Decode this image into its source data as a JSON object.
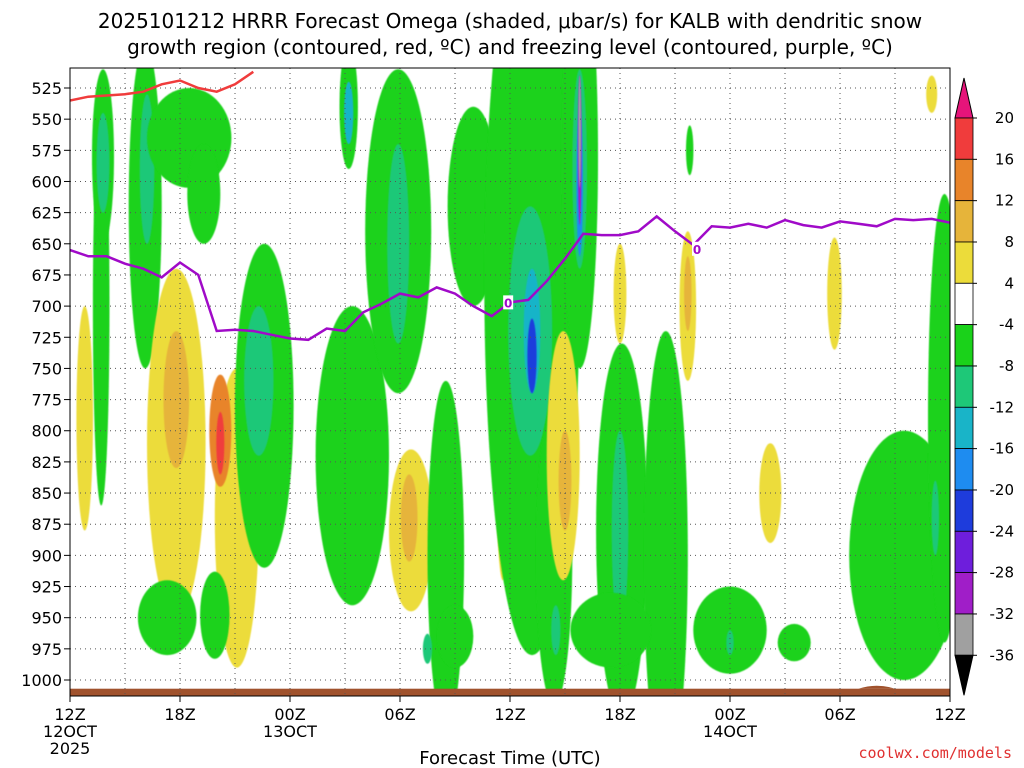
{
  "chart_data": {
    "type": "heatmap",
    "title_line1": "2025101212 HRRR Forecast Omega (shaded, μbar/s) for KALB with dendritic snow",
    "title_line2": "growth region (contoured, red, ºC) and freezing level (contoured, purple, ºC)",
    "xlabel": "Forecast Time (UTC)",
    "credit": "coolwx.com/models",
    "x_range": [
      0,
      48
    ],
    "y_range": [
      525,
      1000
    ],
    "x_ticks": [
      {
        "h": 0,
        "label": "12Z",
        "sub1": "12OCT",
        "sub2": "2025"
      },
      {
        "h": 6,
        "label": "18Z",
        "sub1": "",
        "sub2": ""
      },
      {
        "h": 12,
        "label": "00Z",
        "sub1": "13OCT",
        "sub2": ""
      },
      {
        "h": 18,
        "label": "06Z",
        "sub1": "",
        "sub2": ""
      },
      {
        "h": 24,
        "label": "12Z",
        "sub1": "",
        "sub2": ""
      },
      {
        "h": 30,
        "label": "18Z",
        "sub1": "",
        "sub2": ""
      },
      {
        "h": 36,
        "label": "00Z",
        "sub1": "14OCT",
        "sub2": ""
      },
      {
        "h": 42,
        "label": "06Z",
        "sub1": "",
        "sub2": ""
      },
      {
        "h": 48,
        "label": "12Z",
        "sub1": "",
        "sub2": ""
      }
    ],
    "y_ticks": [
      525,
      550,
      575,
      600,
      625,
      650,
      675,
      700,
      725,
      750,
      775,
      800,
      825,
      850,
      875,
      900,
      925,
      950,
      975,
      1000
    ],
    "colorbar": {
      "ticks": [
        20,
        16,
        12,
        8,
        4,
        -4,
        -8,
        -12,
        -16,
        -20,
        -24,
        -28,
        -32,
        -36
      ],
      "bands": [
        {
          "lo": 16,
          "hi": 20,
          "color": "#f03c3c"
        },
        {
          "lo": 12,
          "hi": 16,
          "color": "#e8842a"
        },
        {
          "lo": 8,
          "hi": 12,
          "color": "#e6b43a"
        },
        {
          "lo": 4,
          "hi": 8,
          "color": "#ecdc3a"
        },
        {
          "lo": -4,
          "hi": 4,
          "color": "#ffffff"
        },
        {
          "lo": -8,
          "hi": -4,
          "color": "#1ad21a"
        },
        {
          "lo": -12,
          "hi": -8,
          "color": "#1ec878"
        },
        {
          "lo": -16,
          "hi": -12,
          "color": "#19b4c8"
        },
        {
          "lo": -20,
          "hi": -16,
          "color": "#1e8cf0"
        },
        {
          "lo": -24,
          "hi": -20,
          "color": "#1e3cdc"
        },
        {
          "lo": -28,
          "hi": -24,
          "color": "#6e1edc"
        },
        {
          "lo": -32,
          "hi": -28,
          "color": "#a01ec8"
        },
        {
          "lo": -36,
          "hi": -32,
          "color": "#a0a0a0"
        }
      ],
      "top_color": "#e6147a",
      "bottom_color": "#000000"
    },
    "omega_regions": [
      {
        "value": -6,
        "h": 1.7,
        "p": 700,
        "dh": 0.45,
        "dp": 160
      },
      {
        "value": 6,
        "h": 0.8,
        "p": 790,
        "dh": 0.45,
        "dp": 90
      },
      {
        "value": -8,
        "h": 1.8,
        "p": 580,
        "dh": 0.6,
        "dp": 70
      },
      {
        "value": -12,
        "h": 1.8,
        "p": 585,
        "dh": 0.35,
        "dp": 40
      },
      {
        "value": -6,
        "h": 4.1,
        "p": 620,
        "dh": 0.9,
        "dp": 130
      },
      {
        "value": -10,
        "h": 4.2,
        "p": 590,
        "dh": 0.4,
        "dp": 60
      },
      {
        "value": -6,
        "h": 6.5,
        "p": 565,
        "dh": 2.3,
        "dp": 40
      },
      {
        "value": -6,
        "h": 7.3,
        "p": 610,
        "dh": 0.9,
        "dp": 40
      },
      {
        "value": 6,
        "h": 5.8,
        "p": 810,
        "dh": 1.6,
        "dp": 140
      },
      {
        "value": 10,
        "h": 5.8,
        "p": 775,
        "dh": 0.7,
        "dp": 55
      },
      {
        "value": 6,
        "h": 9.1,
        "p": 870,
        "dh": 1.2,
        "dp": 120
      },
      {
        "value": 12,
        "h": 8.2,
        "p": 800,
        "dh": 0.6,
        "dp": 45
      },
      {
        "value": 18,
        "h": 8.2,
        "p": 810,
        "dh": 0.22,
        "dp": 25
      },
      {
        "value": -6,
        "h": 5.3,
        "p": 950,
        "dh": 1.6,
        "dp": 30
      },
      {
        "value": -13,
        "h": 7.9,
        "p": 950,
        "dh": 0.35,
        "dp": 25
      },
      {
        "value": -6,
        "h": 7.9,
        "p": 948,
        "dh": 0.8,
        "dp": 35
      },
      {
        "value": -8,
        "h": 10.6,
        "p": 780,
        "dh": 1.6,
        "dp": 130
      },
      {
        "value": -10,
        "h": 10.3,
        "p": 760,
        "dh": 0.8,
        "dp": 60
      },
      {
        "value": -6,
        "h": 15.4,
        "p": 820,
        "dh": 2.0,
        "dp": 120
      },
      {
        "value": -6,
        "h": 17.9,
        "p": 640,
        "dh": 1.8,
        "dp": 130
      },
      {
        "value": -10,
        "h": 17.9,
        "p": 650,
        "dh": 0.6,
        "dp": 80
      },
      {
        "value": -8,
        "h": 15.2,
        "p": 540,
        "dh": 0.5,
        "dp": 50
      },
      {
        "value": -14,
        "h": 15.2,
        "p": 545,
        "dh": 0.25,
        "dp": 25
      },
      {
        "value": 6,
        "h": 18.6,
        "p": 880,
        "dh": 1.2,
        "dp": 65
      },
      {
        "value": 10,
        "h": 18.5,
        "p": 870,
        "dh": 0.45,
        "dp": 35
      },
      {
        "value": -6,
        "h": 20.5,
        "p": 900,
        "dh": 1.0,
        "dp": 140
      },
      {
        "value": -6,
        "h": 21.0,
        "p": 965,
        "dh": 1.0,
        "dp": 25
      },
      {
        "value": -10,
        "h": 19.5,
        "p": 975,
        "dh": 0.25,
        "dp": 12
      },
      {
        "value": -6,
        "h": 22.0,
        "p": 620,
        "dh": 1.4,
        "dp": 80
      },
      {
        "value": 6,
        "h": 23.6,
        "p": 800,
        "dh": 0.4,
        "dp": 120
      },
      {
        "value": -6,
        "h": 25.2,
        "p": 680,
        "dh": 2.6,
        "dp": 300
      },
      {
        "value": -10,
        "h": 25.1,
        "p": 720,
        "dh": 1.2,
        "dp": 100
      },
      {
        "value": -16,
        "h": 25.2,
        "p": 720,
        "dh": 0.45,
        "dp": 50
      },
      {
        "value": -22,
        "h": 25.2,
        "p": 740,
        "dh": 0.25,
        "dp": 30
      },
      {
        "value": -6,
        "h": 26.4,
        "p": 900,
        "dh": 1.0,
        "dp": 120
      },
      {
        "value": -10,
        "h": 26.5,
        "p": 960,
        "dh": 0.25,
        "dp": 20
      },
      {
        "value": -6,
        "h": 27.8,
        "p": 580,
        "dh": 1.0,
        "dp": 170
      },
      {
        "value": -12,
        "h": 27.8,
        "p": 590,
        "dh": 0.4,
        "dp": 80
      },
      {
        "value": -18,
        "h": 27.8,
        "p": 600,
        "dh": 0.18,
        "dp": 60
      },
      {
        "value": -30,
        "h": 27.8,
        "p": 575,
        "dh": 0.1,
        "dp": 60
      },
      {
        "value": -36,
        "h": 27.8,
        "p": 560,
        "dh": 0.07,
        "dp": 45
      },
      {
        "value": 6,
        "h": 26.9,
        "p": 820,
        "dh": 0.9,
        "dp": 100
      },
      {
        "value": 10,
        "h": 27.0,
        "p": 840,
        "dh": 0.35,
        "dp": 40
      },
      {
        "value": -6,
        "h": 30.1,
        "p": 880,
        "dh": 1.4,
        "dp": 150
      },
      {
        "value": -10,
        "h": 30.0,
        "p": 880,
        "dh": 0.45,
        "dp": 80
      },
      {
        "value": -6,
        "h": 32.5,
        "p": 900,
        "dh": 1.2,
        "dp": 180
      },
      {
        "value": -6,
        "h": 29.5,
        "p": 960,
        "dh": 2.2,
        "dp": 30
      },
      {
        "value": -6,
        "h": 36.0,
        "p": 960,
        "dh": 2.0,
        "dp": 35
      },
      {
        "value": -10,
        "h": 36.0,
        "p": 970,
        "dh": 0.2,
        "dp": 10
      },
      {
        "value": -6,
        "h": 39.5,
        "p": 970,
        "dh": 0.9,
        "dp": 15
      },
      {
        "value": -6,
        "h": 33.8,
        "p": 575,
        "dh": 0.2,
        "dp": 20
      },
      {
        "value": 6,
        "h": 30.0,
        "p": 690,
        "dh": 0.35,
        "dp": 40
      },
      {
        "value": 6,
        "h": 33.7,
        "p": 700,
        "dh": 0.45,
        "dp": 60
      },
      {
        "value": 10,
        "h": 33.7,
        "p": 690,
        "dh": 0.2,
        "dp": 30
      },
      {
        "value": 6,
        "h": 38.2,
        "p": 850,
        "dh": 0.6,
        "dp": 40
      },
      {
        "value": 6,
        "h": 41.7,
        "p": 690,
        "dh": 0.4,
        "dp": 45
      },
      {
        "value": -6,
        "h": 45.5,
        "p": 900,
        "dh": 3.0,
        "dp": 100
      },
      {
        "value": -6,
        "h": 47.7,
        "p": 790,
        "dh": 0.9,
        "dp": 180
      },
      {
        "value": -10,
        "h": 47.2,
        "p": 870,
        "dh": 0.2,
        "dp": 30
      },
      {
        "value": 6,
        "h": 47.0,
        "p": 530,
        "dh": 0.3,
        "dp": 15
      }
    ],
    "dendritic_snow_line": {
      "color": "#f03c3c",
      "points": [
        [
          0,
          535
        ],
        [
          1,
          532
        ],
        [
          2,
          531
        ],
        [
          3,
          530
        ],
        [
          4,
          528
        ],
        [
          5,
          522
        ],
        [
          6,
          519
        ],
        [
          7,
          525
        ],
        [
          8,
          528
        ],
        [
          9,
          522
        ],
        [
          10,
          512
        ]
      ]
    },
    "freezing_level": {
      "color": "#a00ac8",
      "label": "0",
      "label_points": [
        [
          23.9,
          697
        ],
        [
          34.2,
          654
        ]
      ],
      "points": [
        [
          0,
          655
        ],
        [
          1,
          660
        ],
        [
          2,
          660
        ],
        [
          3,
          666
        ],
        [
          4,
          670
        ],
        [
          5,
          677
        ],
        [
          6,
          665
        ],
        [
          7,
          675
        ],
        [
          8,
          720
        ],
        [
          9,
          719
        ],
        [
          10,
          720
        ],
        [
          11,
          723
        ],
        [
          12,
          726
        ],
        [
          13,
          727
        ],
        [
          14,
          718
        ],
        [
          15,
          720
        ],
        [
          16,
          705
        ],
        [
          17,
          698
        ],
        [
          18,
          690
        ],
        [
          19,
          693
        ],
        [
          20,
          685
        ],
        [
          21,
          690
        ],
        [
          22,
          700
        ],
        [
          23,
          708
        ],
        [
          24,
          697
        ],
        [
          25,
          695
        ],
        [
          26,
          680
        ],
        [
          27,
          662
        ],
        [
          28,
          642
        ],
        [
          29,
          643
        ],
        [
          30,
          643
        ],
        [
          31,
          640
        ],
        [
          32,
          628
        ],
        [
          33,
          640
        ],
        [
          34,
          651
        ],
        [
          35,
          636
        ],
        [
          36,
          637
        ],
        [
          37,
          634
        ],
        [
          38,
          637
        ],
        [
          39,
          631
        ],
        [
          40,
          635
        ],
        [
          41,
          637
        ],
        [
          42,
          632
        ],
        [
          43,
          634
        ],
        [
          44,
          636
        ],
        [
          45,
          630
        ],
        [
          46,
          631
        ],
        [
          47,
          630
        ],
        [
          48,
          633
        ]
      ]
    },
    "terrain": {
      "color": "#a0522d",
      "top_p": 1007,
      "bump_h": [
        43,
        45
      ]
    }
  }
}
